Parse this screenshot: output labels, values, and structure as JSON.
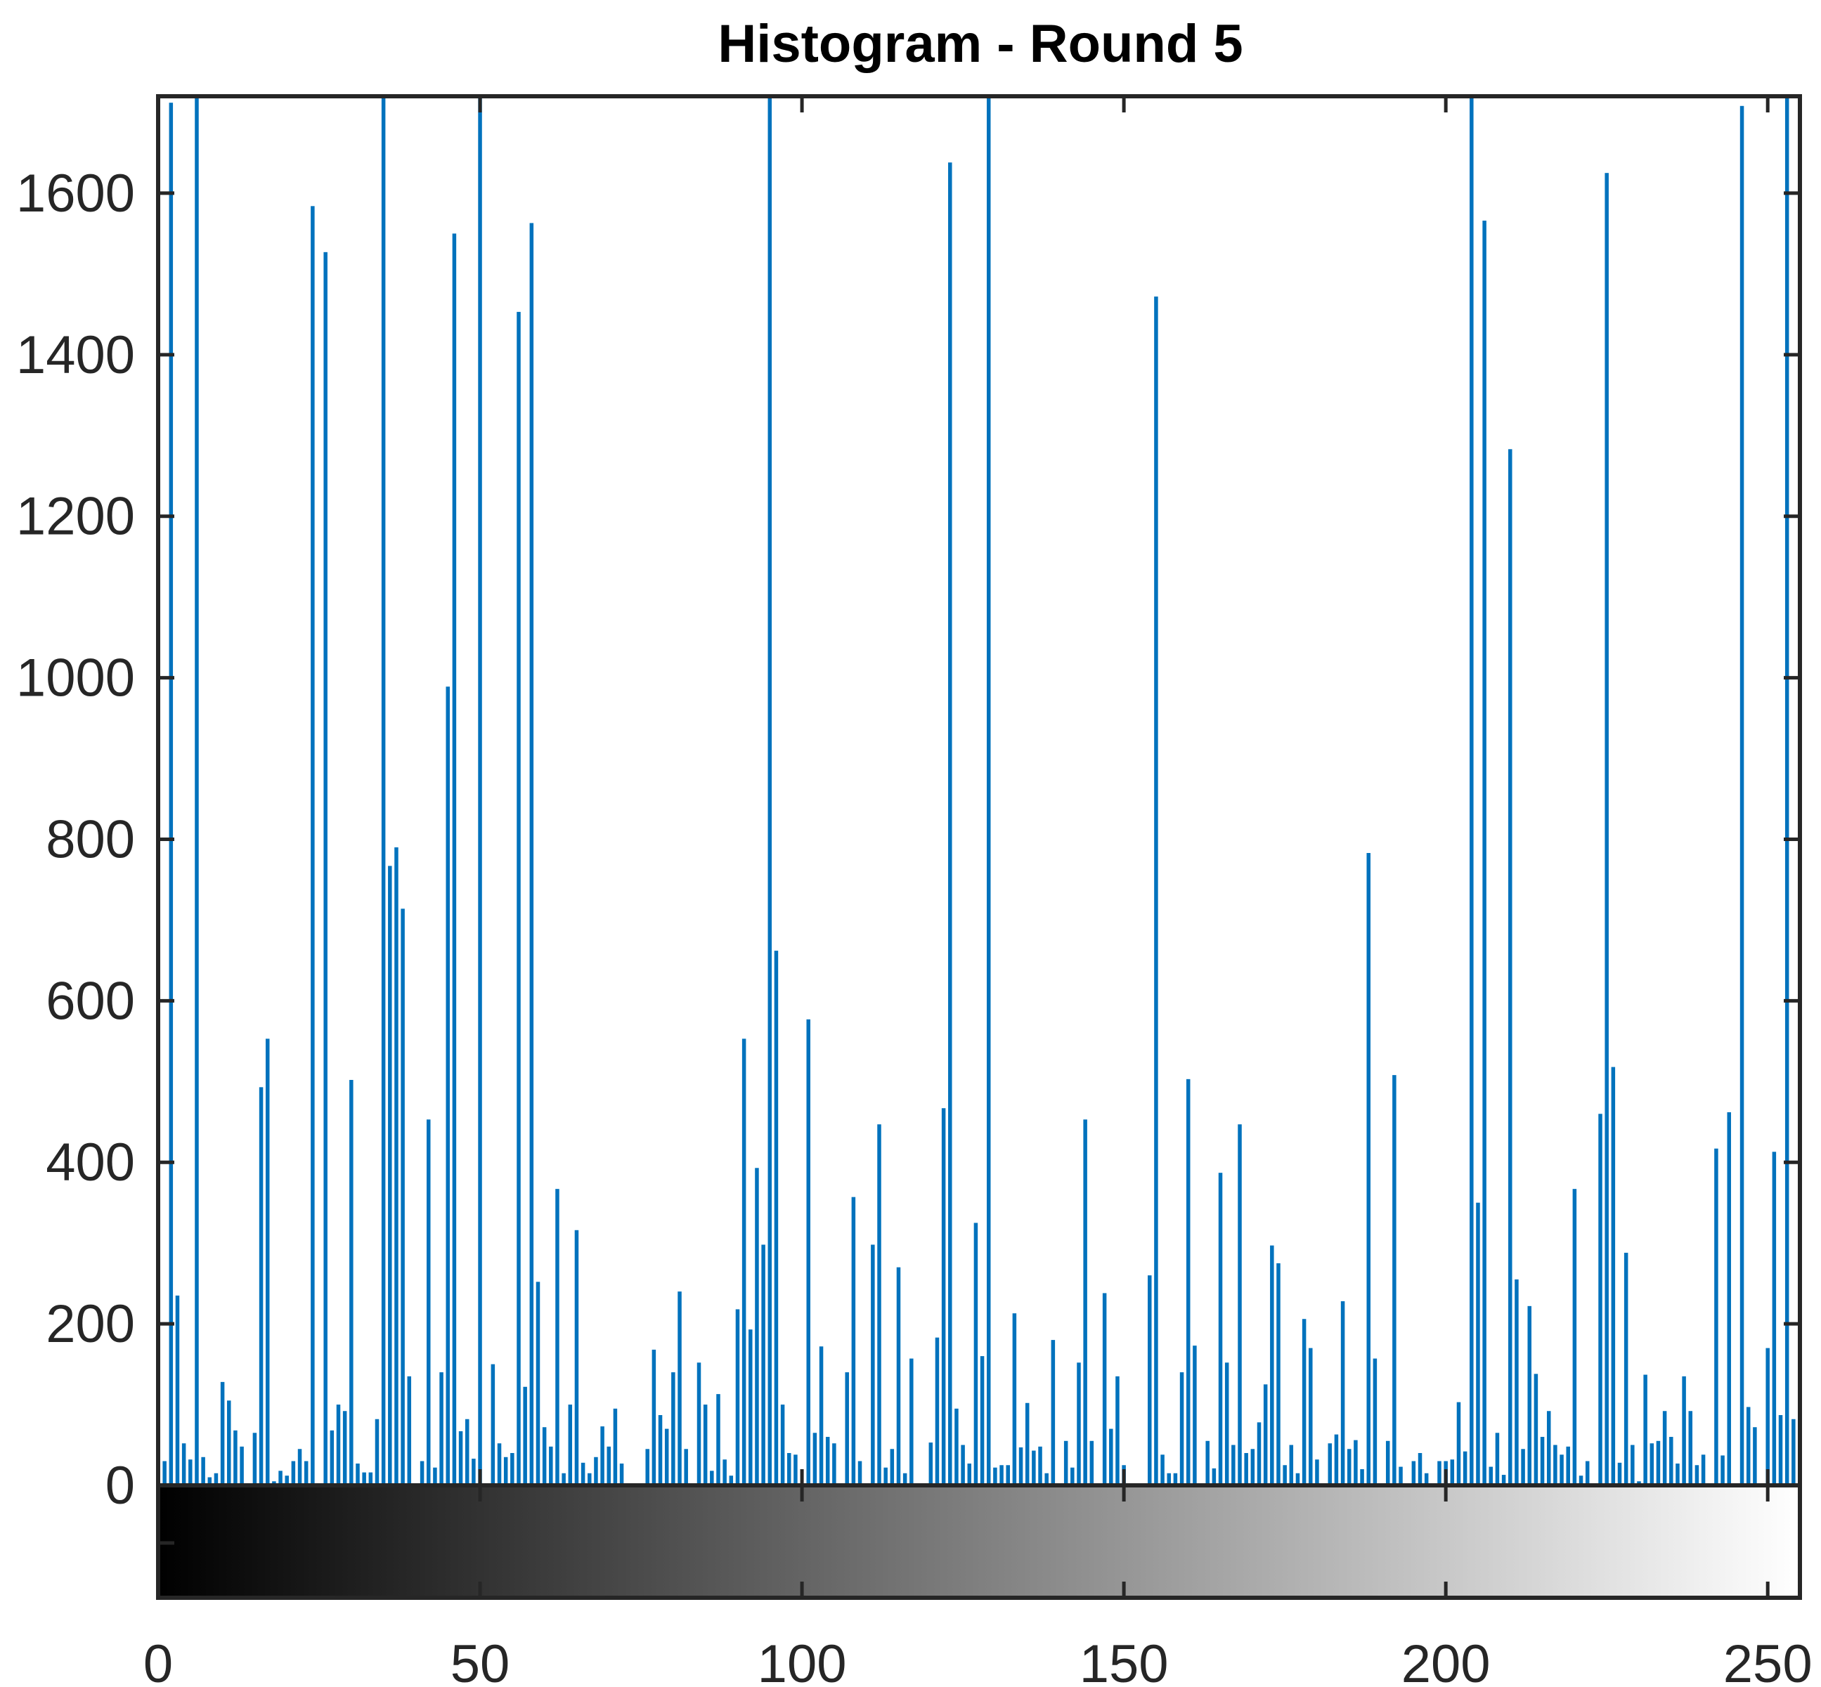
{
  "chart_data": {
    "type": "bar",
    "title": "Histogram - Round 5",
    "xlabel": "",
    "ylabel": "",
    "xlim": [
      0,
      255
    ],
    "ylim": [
      0,
      1720
    ],
    "x_ticks": [
      0,
      50,
      100,
      150,
      200,
      250
    ],
    "y_ticks": [
      0,
      200,
      400,
      600,
      800,
      1000,
      1200,
      1400,
      1600
    ],
    "colorbar": "grayscale 0 to 255",
    "bar_color": "#0072BD",
    "grid": false,
    "values": [
      48,
      30,
      1712,
      235,
      52,
      32,
      1720,
      35,
      10,
      15,
      128,
      105,
      68,
      48,
      0,
      65,
      493,
      553,
      5,
      18,
      12,
      30,
      45,
      30,
      1584,
      0,
      1527,
      68,
      100,
      92,
      502,
      27,
      16,
      16,
      82,
      1720,
      767,
      790,
      714,
      135,
      0,
      30,
      453,
      22,
      140,
      989,
      1550,
      67,
      82,
      33,
      1720,
      0,
      150,
      52,
      35,
      40,
      1453,
      122,
      1563,
      252,
      72,
      48,
      367,
      15,
      100,
      316,
      28,
      15,
      35,
      73,
      48,
      95,
      27,
      0,
      0,
      0,
      45,
      168,
      87,
      70,
      140,
      240,
      45,
      0,
      152,
      100,
      18,
      113,
      32,
      12,
      218,
      553,
      193,
      393,
      298,
      1720,
      662,
      100,
      40,
      38,
      0,
      577,
      65,
      172,
      60,
      52,
      0,
      140,
      357,
      30,
      0,
      298,
      447,
      22,
      45,
      270,
      15,
      157,
      0,
      0,
      53,
      183,
      467,
      1638,
      95,
      50,
      27,
      325,
      160,
      1720,
      22,
      25,
      25,
      213,
      47,
      102,
      43,
      48,
      15,
      180,
      0,
      55,
      22,
      152,
      453,
      55,
      0,
      238,
      70,
      135,
      25,
      0,
      0,
      0,
      260,
      1472,
      38,
      15,
      15,
      140,
      503,
      173,
      0,
      55,
      21,
      387,
      152,
      50,
      447,
      40,
      45,
      78,
      125,
      297,
      275,
      25,
      50,
      15,
      206,
      170,
      32,
      0,
      52,
      63,
      228,
      45,
      56,
      20,
      783,
      157,
      0,
      55,
      508,
      23,
      0,
      30,
      40,
      15,
      0,
      30,
      30,
      32,
      103,
      42,
      1720,
      350,
      1566,
      23,
      65,
      13,
      1283,
      255,
      45,
      222,
      138,
      60,
      92,
      50,
      38,
      48,
      367,
      12,
      30,
      0,
      460,
      1625,
      518,
      28,
      288,
      50,
      5,
      137,
      52,
      55,
      92,
      60,
      27,
      135,
      92,
      25,
      38,
      0,
      417,
      37,
      462,
      0,
      1708,
      97,
      72,
      0,
      170,
      413,
      87,
      1720,
      82
    ]
  }
}
